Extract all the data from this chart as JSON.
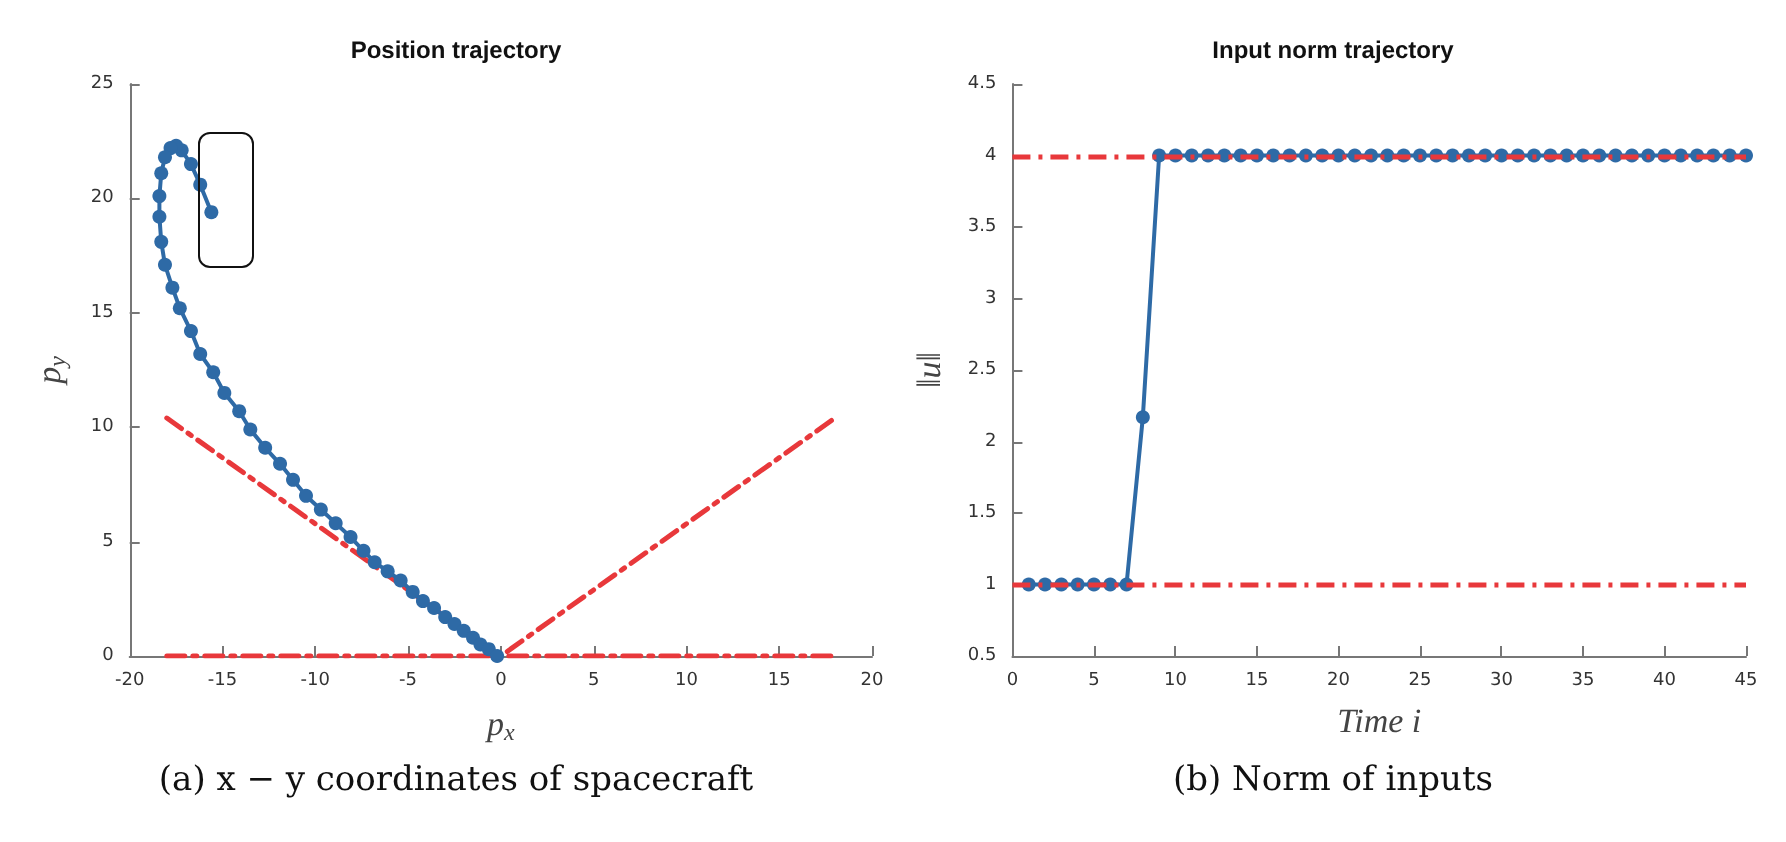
{
  "chart_data": [
    {
      "type": "line",
      "title": "Position trajectory",
      "xlabel": "p$_{x}$",
      "ylabel": "p$_{y}$",
      "xlim": [
        -20,
        20
      ],
      "xticks": [
        -20,
        -15,
        -10,
        -5,
        0,
        5,
        10,
        15,
        20
      ],
      "ylim": [
        0,
        25
      ],
      "yticks": [
        0,
        5,
        10,
        15,
        20,
        25
      ],
      "grid": false,
      "marker": "circle",
      "line_style": "solid",
      "annotations": [
        "(a) x − y coordinates of spacecraft"
      ],
      "series": [
        {
          "color": "#2e6aa6",
          "x": [
            -15.6,
            -16.2,
            -16.7,
            -17.2,
            -17.5,
            -17.8,
            -18.1,
            -18.3,
            -18.4,
            -18.4,
            -18.3,
            -18.1,
            -17.7,
            -17.3,
            -16.7,
            -16.2,
            -15.5,
            -14.9,
            -14.1,
            -13.5,
            -12.7,
            -11.9,
            -11.2,
            -10.5,
            -9.7,
            -8.9,
            -8.1,
            -7.4,
            -6.8,
            -6.1,
            -5.4,
            -4.75,
            -4.2,
            -3.6,
            -3.0,
            -2.5,
            -2.0,
            -1.5,
            -1.1,
            -0.65,
            -0.2
          ],
          "values": [
            19.4,
            20.6,
            21.5,
            22.1,
            22.3,
            22.2,
            21.8,
            21.1,
            20.1,
            19.2,
            18.1,
            17.1,
            16.1,
            15.2,
            14.2,
            13.2,
            12.4,
            11.5,
            10.7,
            9.9,
            9.1,
            8.4,
            7.7,
            7.0,
            6.4,
            5.8,
            5.2,
            4.6,
            4.1,
            3.7,
            3.3,
            2.8,
            2.4,
            2.1,
            1.7,
            1.4,
            1.1,
            0.8,
            0.5,
            0.3,
            0
          ]
        },
        {
          "color": "#e8383b",
          "type": "line",
          "marker": "none",
          "line_style": "dashed",
          "x": [
            -18,
            0,
            18
          ],
          "values": [
            10.4,
            0,
            10.4
          ]
        },
        {
          "color": "#e8383b",
          "type": "line",
          "marker": "none",
          "line_style": "dashed",
          "x": [
            -18,
            18
          ],
          "values": [
            0,
            0
          ]
        }
      ]
    },
    {
      "type": "line",
      "title": "Input norm trajectory",
      "xlabel": "Time i",
      "ylabel": "‖u‖",
      "xlim": [
        0,
        45
      ],
      "xticks": [
        0,
        5,
        10,
        15,
        20,
        25,
        30,
        35,
        40,
        45
      ],
      "ylim": [
        0.5,
        4.5
      ],
      "yticks": [
        0.5,
        1,
        1.5,
        2,
        2.5,
        3,
        3.5,
        4,
        4.5
      ],
      "grid": false,
      "marker": "circle",
      "line_style": "solid",
      "annotations": [
        "(b) Norm of inputs"
      ],
      "x": [
        1,
        2,
        3,
        4,
        5,
        6,
        7,
        8,
        9,
        10,
        11,
        12,
        13,
        14,
        15,
        16,
        17,
        18,
        19,
        20,
        21,
        22,
        23,
        24,
        25,
        26,
        27,
        28,
        29,
        30,
        31,
        32,
        33,
        34,
        35,
        36,
        37,
        38,
        39,
        40,
        41,
        42,
        43,
        44,
        45
      ],
      "ref_lines": [
        {
          "axis": "y",
          "value": 4,
          "color": "#e8383b",
          "line_style": "dashed"
        },
        {
          "axis": "y",
          "value": 1,
          "color": "#e8383b",
          "line_style": "dashed"
        }
      ],
      "series": [
        {
          "color": "#2e6aa6",
          "values": [
            1,
            1,
            1,
            1,
            1,
            1,
            1,
            2.17,
            4,
            4,
            4,
            4,
            4,
            4,
            4,
            4,
            4,
            4,
            4,
            4,
            4,
            4,
            4,
            4,
            4,
            4,
            4,
            4,
            4,
            4,
            4,
            4,
            4,
            4,
            4,
            4,
            4,
            4,
            4,
            4,
            4,
            4,
            4,
            4,
            4
          ]
        }
      ]
    }
  ]
}
